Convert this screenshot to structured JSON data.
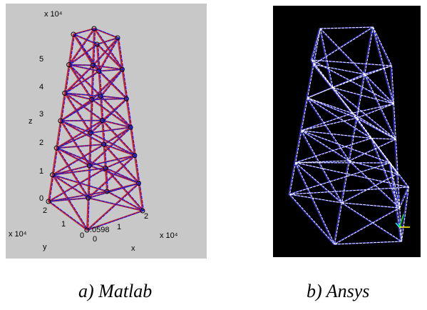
{
  "matlab": {
    "exponent_top": "x 10⁴",
    "z_label": "z",
    "z_ticks": [
      "0",
      "1",
      "2",
      "3",
      "4",
      "5"
    ],
    "y_label": "y",
    "y_ticks": [
      "0",
      "1",
      "2"
    ],
    "y_exponent": "x 10⁴",
    "x_label": "x",
    "x_ticks": [
      "0",
      "1",
      "2"
    ],
    "x_exponent": "x 10⁴",
    "marker_label": ".0598"
  },
  "captions": [
    "a)  Matlab",
    "b) Ansys"
  ]
}
